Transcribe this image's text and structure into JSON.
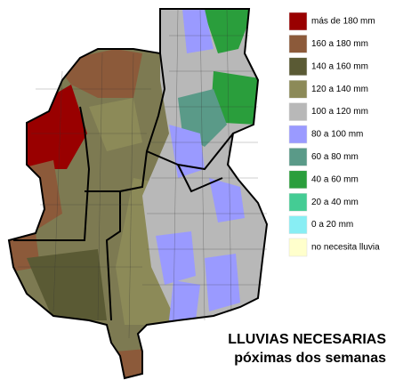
{
  "legend": {
    "items": [
      {
        "label": "más de 180 mm",
        "color": "#990000"
      },
      {
        "label": "160 a 180 mm",
        "color": "#8c5a3a"
      },
      {
        "label": "140 a 160 mm",
        "color": "#5a5a34"
      },
      {
        "label": "120 a 140 mm",
        "color": "#8c8a58"
      },
      {
        "label": "100 a 120 mm",
        "color": "#b8b8b8"
      },
      {
        "label": "80 a 100 mm",
        "color": "#9a9aff"
      },
      {
        "label": "60 a 80 mm",
        "color": "#5a9a88"
      },
      {
        "label": "40 a 60 mm",
        "color": "#2a9e3c"
      },
      {
        "label": "20 a 40 mm",
        "color": "#44cc94"
      },
      {
        "label": "0 a 20 mm",
        "color": "#88eef4"
      },
      {
        "label": "no necesita lluvia",
        "color": "#ffffcc"
      }
    ]
  },
  "title": {
    "line1": "LLUVIAS NECESARIAS",
    "line2": "póximas dos semanas"
  }
}
